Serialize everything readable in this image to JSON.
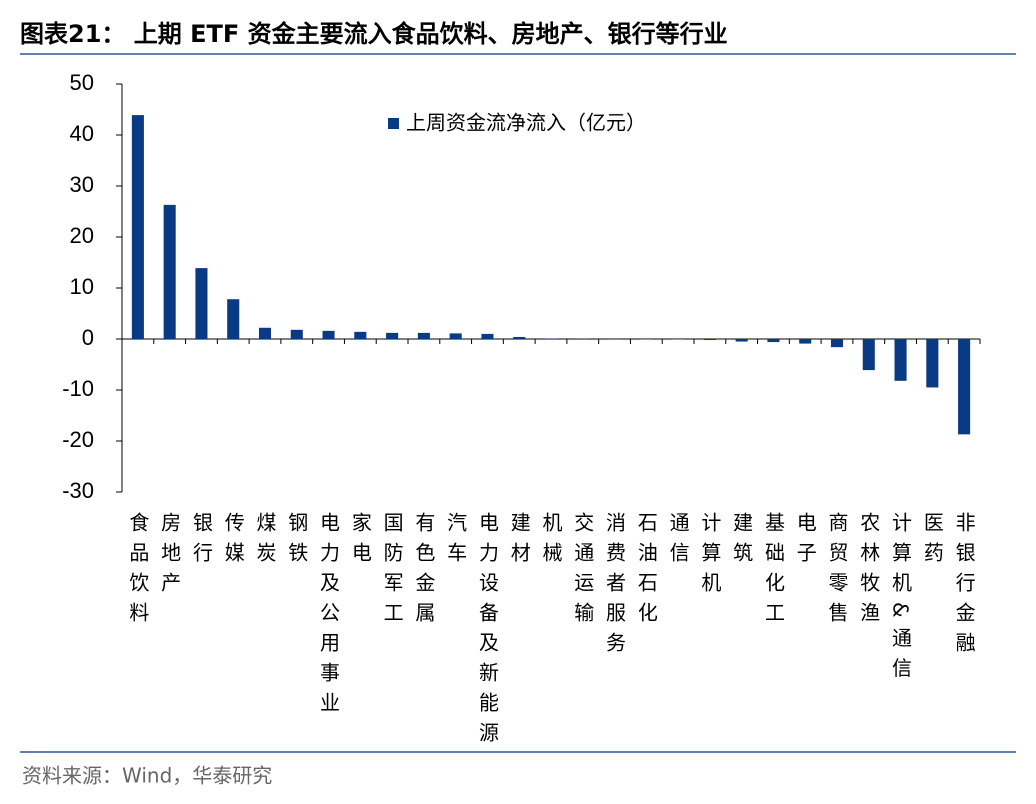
{
  "title": "图表21：  上期 ETF 资金主要流入食品饮料、房地产、银行等行业",
  "source": "资料来源：Wind，华泰研究",
  "chart_data": {
    "type": "bar",
    "categories": [
      "食品饮料",
      "房地产",
      "银行",
      "传媒",
      "煤炭",
      "钢铁",
      "电力及公用事业",
      "家电",
      "国防军工",
      "有色金属",
      "汽车",
      "电力设备及新能源",
      "建材",
      "机械",
      "交通运输",
      "消费者服务",
      "石油石化",
      "通信",
      "计算机",
      "建筑",
      "基础化工",
      "电子",
      "商贸零售",
      "农林牧渔",
      "计算机&通信",
      "医药",
      "非银行金融"
    ],
    "series": [
      {
        "name": "上周资金流净流入（亿元）",
        "color": "#0b3a84",
        "values": [
          43.9,
          26.3,
          13.9,
          7.8,
          2.2,
          1.8,
          1.6,
          1.4,
          1.2,
          1.2,
          1.1,
          1.0,
          0.4,
          0.1,
          0.05,
          -0.05,
          -0.1,
          -0.1,
          -0.2,
          -0.5,
          -0.6,
          -0.9,
          -1.6,
          -6.1,
          -8.2,
          -9.5,
          -18.7
        ]
      }
    ],
    "ylim": [
      -30,
      50
    ],
    "yticks": [
      -30,
      -20,
      -10,
      0,
      10,
      20,
      30,
      40,
      50
    ],
    "grid": false,
    "legend": "top"
  }
}
